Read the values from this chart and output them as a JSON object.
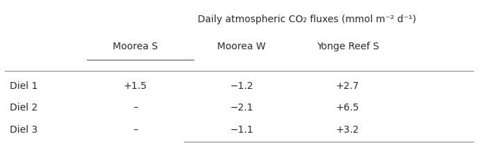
{
  "title_line1": "Daily atmospheric CO₂ fluxes (mmol m⁻² d⁻¹)",
  "subheader1": "Moorea S",
  "subheader2": "Moorea W",
  "subheader3": "Yonge Reef S",
  "row_headers": [
    "Diel 1",
    "Diel 2",
    "Diel 3"
  ],
  "cell_data": [
    [
      "+1.5",
      "−1.2",
      "+2.7"
    ],
    [
      "–",
      "−2.1",
      "+6.5"
    ],
    [
      "–",
      "−1.1",
      "+3.2"
    ]
  ],
  "bg_color": "#ffffff",
  "text_color": "#2a2a2a",
  "fontsize": 10,
  "title_fontsize": 10,
  "line_color": "#888888",
  "partial_line_color": "#555555"
}
